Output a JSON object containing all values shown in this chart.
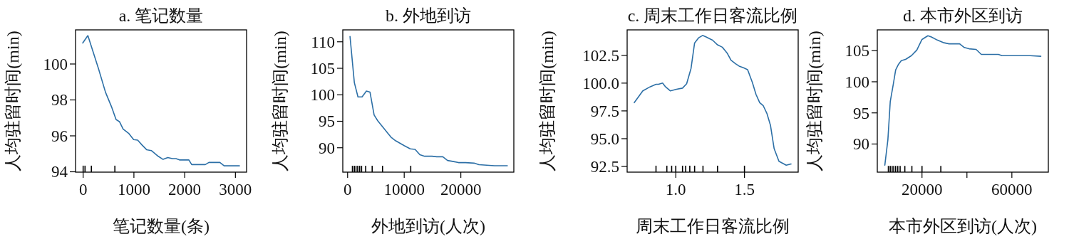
{
  "chart_data": [
    {
      "type": "line",
      "title": "a. 笔记数量",
      "xlabel": "笔记数量(条)",
      "ylabel": "人均驻留时间(min)",
      "xlim": [
        -150,
        3220
      ],
      "ylim": [
        93.98,
        101.9
      ],
      "xticks": [
        0,
        1000,
        2000,
        3000
      ],
      "yticks": [
        94,
        96,
        98,
        100
      ],
      "series": [
        {
          "type": "line",
          "color": "#2c6fa6",
          "x": [
            -9,
            93,
            301,
            440,
            556,
            648,
            718,
            787,
            903,
            995,
            1074,
            1157,
            1250,
            1343,
            1481,
            1574,
            1667,
            1759,
            1829,
            1898,
            2083,
            2139,
            2407,
            2477,
            2694,
            2778,
            3079
          ],
          "values": [
            101.17,
            101.58,
            99.75,
            98.43,
            97.64,
            96.91,
            96.78,
            96.38,
            96.12,
            95.79,
            95.76,
            95.5,
            95.23,
            95.18,
            94.86,
            94.69,
            94.79,
            94.73,
            94.73,
            94.66,
            94.66,
            94.4,
            94.4,
            94.52,
            94.52,
            94.33,
            94.33
          ]
        },
        {
          "type": "bar",
          "color": "#000000",
          "x": [
            0,
            37,
            162,
            625
          ],
          "base": [
            93.98,
            93.98,
            93.98,
            93.98
          ],
          "values": [
            0.36,
            0.36,
            0.36,
            0.36
          ]
        }
      ]
    },
    {
      "type": "line",
      "title": "b. 外地到访",
      "xlabel": "外地到访(人次)",
      "ylabel": "人均驻留时间(min)",
      "xlim": [
        -850,
        29360
      ],
      "ylim": [
        85.4,
        112.25
      ],
      "xticks": [
        0,
        10000,
        20000
      ],
      "yticks": [
        90,
        95,
        100,
        105,
        110
      ],
      "series": [
        {
          "type": "line",
          "color": "#2c6fa6",
          "x": [
            426,
            1191,
            1830,
            2553,
            3319,
            3957,
            4681,
            5319,
            6383,
            7660,
            8511,
            10000,
            11064,
            11915,
            12766,
            13617,
            14894,
            15745,
            16809,
            17660,
            18723,
            19574,
            20851,
            22340,
            23191,
            25957,
            28213
          ],
          "values": [
            111.0,
            102.3,
            99.6,
            99.6,
            100.7,
            100.5,
            96.2,
            95.1,
            93.7,
            92.0,
            91.3,
            90.4,
            89.8,
            89.7,
            88.7,
            88.4,
            88.4,
            88.3,
            88.3,
            87.6,
            87.4,
            87.2,
            87.2,
            87.1,
            86.8,
            86.6,
            86.6
          ]
        },
        {
          "type": "bar",
          "color": "#000000",
          "x": [
            851,
            1191,
            1489,
            1787,
            2128,
            2468,
            3191,
            4340,
            6170,
            11149
          ],
          "base": [
            85.4,
            85.4,
            85.4,
            85.4,
            85.4,
            85.4,
            85.4,
            85.4,
            85.4,
            85.4
          ],
          "values": [
            1.2,
            1.2,
            1.2,
            1.2,
            1.2,
            1.2,
            1.2,
            1.2,
            1.2,
            1.2
          ]
        }
      ]
    },
    {
      "type": "line",
      "title": "c. 周末工作日客流比例",
      "xlabel": "周末工作日客流比例",
      "ylabel": "人均驻留时间(min)",
      "xlim": [
        0.646,
        1.891
      ],
      "ylim": [
        91.99,
        104.79
      ],
      "xticks": [
        {
          "value": 1,
          "label": "1.0"
        },
        1.5
      ],
      "yticks": [
        92.5,
        {
          "value": 95,
          "label": "95.0"
        },
        97.5,
        {
          "value": 100,
          "label": "100.0"
        },
        102.5
      ],
      "series": [
        {
          "type": "line",
          "color": "#2c6fa6",
          "x": [
            0.698,
            0.76,
            0.812,
            0.856,
            0.874,
            0.904,
            0.926,
            0.961,
            1.005,
            1.049,
            1.079,
            1.111,
            1.137,
            1.167,
            1.195,
            1.216,
            1.268,
            1.304,
            1.339,
            1.374,
            1.402,
            1.435,
            1.461,
            1.496,
            1.523,
            1.558,
            1.584,
            1.611,
            1.637,
            1.663,
            1.689,
            1.716,
            1.751,
            1.804,
            1.839
          ],
          "values": [
            98.24,
            99.3,
            99.66,
            99.89,
            99.89,
            100.0,
            99.66,
            99.3,
            99.45,
            99.55,
            99.94,
            101.32,
            103.61,
            104.08,
            104.29,
            104.18,
            103.86,
            103.44,
            103.23,
            102.7,
            102.06,
            101.74,
            101.53,
            101.36,
            101.21,
            100.04,
            98.98,
            98.24,
            97.96,
            97.28,
            96.22,
            94.1,
            92.97,
            92.61,
            92.72
          ]
        },
        {
          "type": "bar",
          "color": "#000000",
          "x": [
            0.856,
            0.935,
            0.97,
            1.0,
            1.049,
            1.072,
            1.102,
            1.137,
            1.198,
            1.304,
            1.5
          ],
          "base": [
            91.99,
            91.99,
            91.99,
            91.99,
            91.99,
            91.99,
            91.99,
            91.99,
            91.99,
            91.99,
            91.99
          ],
          "values": [
            0.58,
            0.58,
            0.58,
            0.58,
            0.58,
            0.58,
            0.58,
            0.58,
            0.58,
            0.58,
            0.58
          ]
        }
      ]
    },
    {
      "type": "line",
      "title": "d. 本市外区到访",
      "xlabel": "本市外区到访(人次)",
      "ylabel": "人均驻留时间(min)",
      "xlim": [
        100,
        76230
      ],
      "ylim": [
        85.48,
        108.34
      ],
      "xticks": [
        20000,
        {
          "value": 40000,
          "label": null
        },
        60000
      ],
      "yticks": [
        90,
        95,
        100,
        105
      ],
      "series": [
        {
          "type": "line",
          "color": "#2c6fa6",
          "x": [
            3455,
            4817,
            5864,
            7225,
            8272,
            9529,
            10785,
            12670,
            15288,
            17696,
            20000,
            22618,
            24188,
            26806,
            29424,
            32042,
            36754,
            38848,
            40942,
            44084,
            46387,
            54031,
            55602,
            68168,
            72880
          ],
          "values": [
            86.6,
            90.7,
            96.8,
            99.6,
            101.9,
            102.8,
            103.4,
            103.6,
            104.2,
            105.1,
            106.8,
            107.4,
            107.2,
            106.7,
            106.3,
            106.1,
            106.1,
            105.5,
            105.3,
            105.2,
            104.4,
            104.4,
            104.2,
            104.2,
            104.1
          ]
        },
        {
          "type": "bar",
          "color": "#000000",
          "x": [
            5026,
            5864,
            6702,
            7435,
            8272,
            9215,
            10262,
            12356,
            15497,
            20000,
            28377
          ],
          "base": [
            85.48,
            85.48,
            85.48,
            85.48,
            85.48,
            85.48,
            85.48,
            85.48,
            85.48,
            85.48,
            85.48
          ],
          "values": [
            1.0,
            1.0,
            1.0,
            1.0,
            1.0,
            1.0,
            1.0,
            1.0,
            1.0,
            1.0,
            1.0
          ]
        }
      ]
    }
  ]
}
